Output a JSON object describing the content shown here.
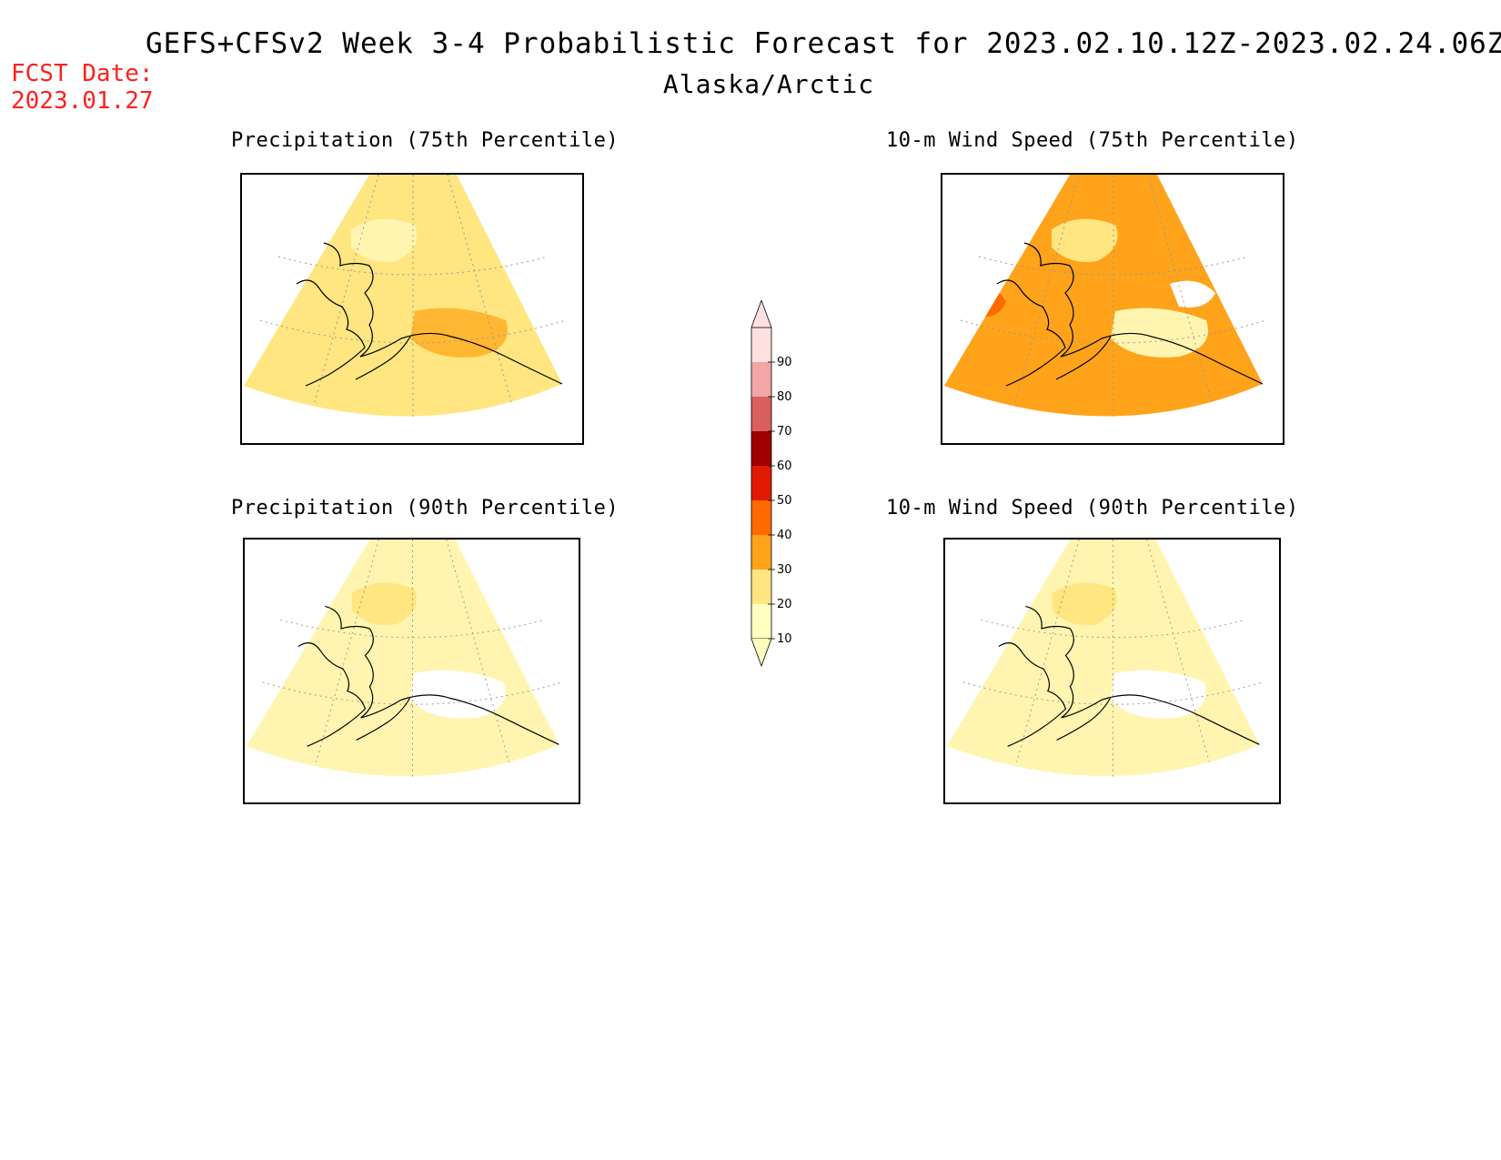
{
  "header": {
    "title": "GEFS+CFSv2 Week 3-4 Probabilistic Forecast for 2023.02.10.12Z-2023.02.24.06Z",
    "subtitle": "Alaska/Arctic",
    "fcst_label": "FCST Date:",
    "fcst_date": "2023.01.27"
  },
  "panels": [
    {
      "title": "Precipitation (75th Percentile)",
      "base_color": "#ffe680",
      "patches": [
        "#fff5b0",
        "#ffb733"
      ]
    },
    {
      "title": "10-m Wind Speed (75th Percentile)",
      "base_color": "#ffa31a",
      "patches": [
        "#ffe680",
        "#fff5b0",
        "#ff6a00",
        "#ffffff"
      ]
    },
    {
      "title": "Precipitation (90th Percentile)",
      "base_color": "#fff5b0",
      "patches": [
        "#ffe680",
        "#ffffff"
      ]
    },
    {
      "title": "10-m Wind Speed (90th Percentile)",
      "base_color": "#fff5b0",
      "patches": [
        "#ffe680",
        "#ffffff"
      ]
    }
  ],
  "colorbar": {
    "levels": [
      "10",
      "20",
      "30",
      "40",
      "50",
      "60",
      "70",
      "80",
      "90"
    ],
    "colors": [
      "#ffffc0",
      "#ffe680",
      "#ffa31a",
      "#ff6a00",
      "#e01a00",
      "#a00000",
      "#d95f5f",
      "#f2a6a6",
      "#ffe0e0"
    ]
  }
}
